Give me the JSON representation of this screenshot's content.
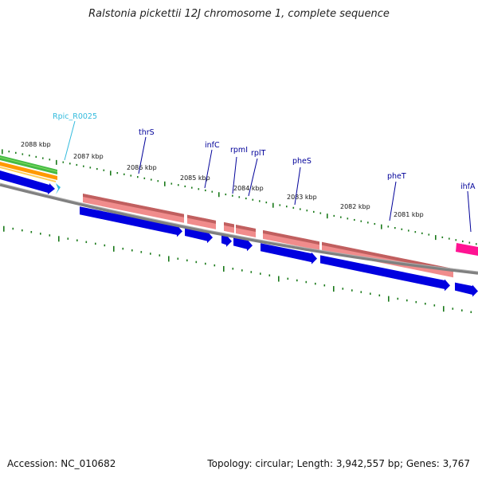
{
  "title": "Ralstonia pickettii 12J chromosome 1, complete sequence",
  "footer": {
    "accession": "Accession: NC_010682",
    "summary": "Topology: circular; Length: 3,942,557 bp; Genes: 3,767"
  },
  "colors": {
    "gene_forward": "#f08c8c",
    "gene_forward_edge": "#b05050",
    "cds": "#0000e0",
    "backbone": "#808080",
    "tick": "#1a7a1a",
    "label_blue": "#000099",
    "label_cyan": "#33bbdd",
    "magenta": "#ff1493"
  },
  "kbp_labels": [
    "2088 kbp",
    "2087 kbp",
    "2086 kbp",
    "2085 kbp",
    "2084 kbp",
    "2083 kbp",
    "2082 kbp",
    "2081 kbp"
  ],
  "gene_labels": [
    {
      "name": "Rpic_R0025",
      "color": "label_cyan"
    },
    {
      "name": "thrS",
      "color": "label_blue"
    },
    {
      "name": "infC",
      "color": "label_blue"
    },
    {
      "name": "rpmI",
      "color": "label_blue"
    },
    {
      "name": "rplT",
      "color": "label_blue"
    },
    {
      "name": "pheS",
      "color": "label_blue"
    },
    {
      "name": "pheT",
      "color": "label_blue"
    },
    {
      "name": "ihfA",
      "color": "label_blue"
    }
  ]
}
